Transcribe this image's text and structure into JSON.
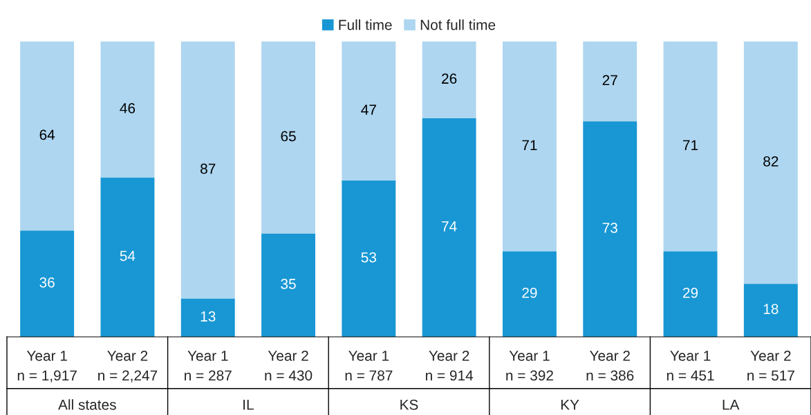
{
  "chart_data": {
    "type": "bar",
    "stacked": true,
    "categories": [
      "Year 1\nn = 1,917",
      "Year 2\nn = 2,247",
      "Year 1\nn = 287",
      "Year 2\nn = 430",
      "Year 1\nn = 787",
      "Year 2\nn = 914",
      "Year 1\nn = 392",
      "Year 2\nn = 386",
      "Year 1\nn = 451",
      "Year 2\nn = 517"
    ],
    "series": [
      {
        "name": "Full time",
        "color": "#1897d4",
        "values": [
          36,
          54,
          13,
          35,
          53,
          74,
          29,
          73,
          29,
          18
        ]
      },
      {
        "name": "Not full time",
        "color": "#aed6f0",
        "values": [
          64,
          46,
          87,
          65,
          47,
          26,
          71,
          27,
          71,
          82
        ]
      }
    ],
    "annotations": [
      "All states",
      "IL",
      "KS",
      "KY",
      "LA"
    ],
    "data_labels": true,
    "legend": "top",
    "grid": false
  }
}
